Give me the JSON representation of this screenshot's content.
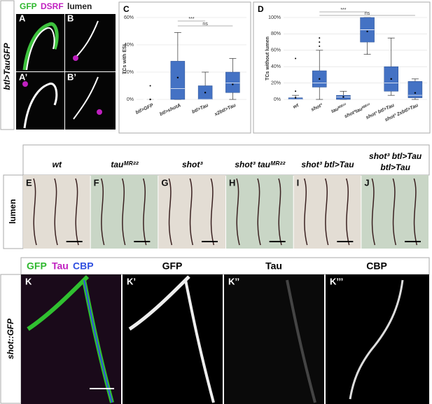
{
  "panel_labels": [
    "A",
    "B",
    "A’",
    "B’",
    "C",
    "D",
    "E",
    "F",
    "G",
    "H",
    "I",
    "J",
    "K",
    "K’",
    "K’’",
    "K’’’"
  ],
  "row1": {
    "stain_labels": [
      "GFP",
      "DSRF",
      "lumen"
    ],
    "genotype": "btl>TauGFP"
  },
  "row2": {
    "stain": "lumen",
    "genotypes": [
      "wt",
      "tauᴹᴿ²²",
      "shot³",
      "shot³ tauᴹᴿ²²",
      "shot³ btl>Tau",
      "shot³ btl>Tau",
      "btl>Tau"
    ]
  },
  "row3": {
    "stain_labels": [
      "GFP",
      "Tau",
      "CBP"
    ],
    "genotype": "shot::GFP",
    "channels": [
      "GFP",
      "Tau",
      "CBP"
    ]
  },
  "chart_data": [
    {
      "type": "box",
      "ylabel": "TCs with ESL",
      "color": "#4472c4",
      "categories": [
        "btl>GFP",
        "btl>shotA",
        "btl>Tau",
        "x2btl>Tau"
      ],
      "boxes": [
        {
          "min": 0,
          "q1": 0,
          "median": 0,
          "q3": 0,
          "max": 0,
          "mean": 0,
          "outliers": [
            10
          ]
        },
        {
          "min": 0,
          "q1": 0,
          "median": 8,
          "q3": 28,
          "max": 49,
          "mean": 16,
          "outliers": []
        },
        {
          "min": 0,
          "q1": 0,
          "median": 0,
          "q3": 10,
          "max": 20,
          "mean": 5,
          "outliers": []
        },
        {
          "min": 0,
          "q1": 5,
          "median": 12,
          "q3": 20,
          "max": 30,
          "mean": 11,
          "outliers": []
        }
      ],
      "ylim": [
        0,
        60
      ],
      "yticks": [
        {
          "value": 0,
          "label": "0%"
        },
        {
          "value": 20,
          "label": "20%"
        },
        {
          "value": 40,
          "label": "40%"
        },
        {
          "value": 60,
          "label": "60%"
        }
      ],
      "annotations": [
        "***",
        "ns"
      ]
    },
    {
      "type": "box",
      "ylabel": "TCs without lumen",
      "color": "#4472c4",
      "categories": [
        "wt",
        "shot³",
        "tauᴹᴿ²²",
        "shot³tauᴹᴿ²²",
        "shot³ btl>Tau",
        "shot³ 2xbtl>Tau"
      ],
      "boxes": [
        {
          "min": 0,
          "q1": 0,
          "median": 0,
          "q3": 2,
          "max": 5,
          "mean": 2,
          "outliers": [
            10,
            50
          ]
        },
        {
          "min": 0,
          "q1": 15,
          "median": 20,
          "q3": 35,
          "max": 60,
          "mean": 25,
          "outliers": [
            65,
            70,
            75
          ]
        },
        {
          "min": 0,
          "q1": 0,
          "median": 3,
          "q3": 5,
          "max": 10,
          "mean": 3,
          "outliers": []
        },
        {
          "min": 55,
          "q1": 70,
          "median": 85,
          "q3": 100,
          "max": 100,
          "mean": 83,
          "outliers": []
        },
        {
          "min": 5,
          "q1": 10,
          "median": 20,
          "q3": 40,
          "max": 75,
          "mean": 25,
          "outliers": []
        },
        {
          "min": 0,
          "q1": 2,
          "median": 5,
          "q3": 22,
          "max": 25,
          "mean": 8,
          "outliers": []
        }
      ],
      "ylim": [
        0,
        100
      ],
      "yticks": [
        {
          "value": 0,
          "label": "0%"
        },
        {
          "value": 20,
          "label": "20%"
        },
        {
          "value": 40,
          "label": "40%"
        },
        {
          "value": 60,
          "label": "60%"
        },
        {
          "value": 80,
          "label": "80%"
        },
        {
          "value": 100,
          "label": "100%"
        }
      ],
      "annotations": [
        "***",
        "ns"
      ]
    }
  ]
}
